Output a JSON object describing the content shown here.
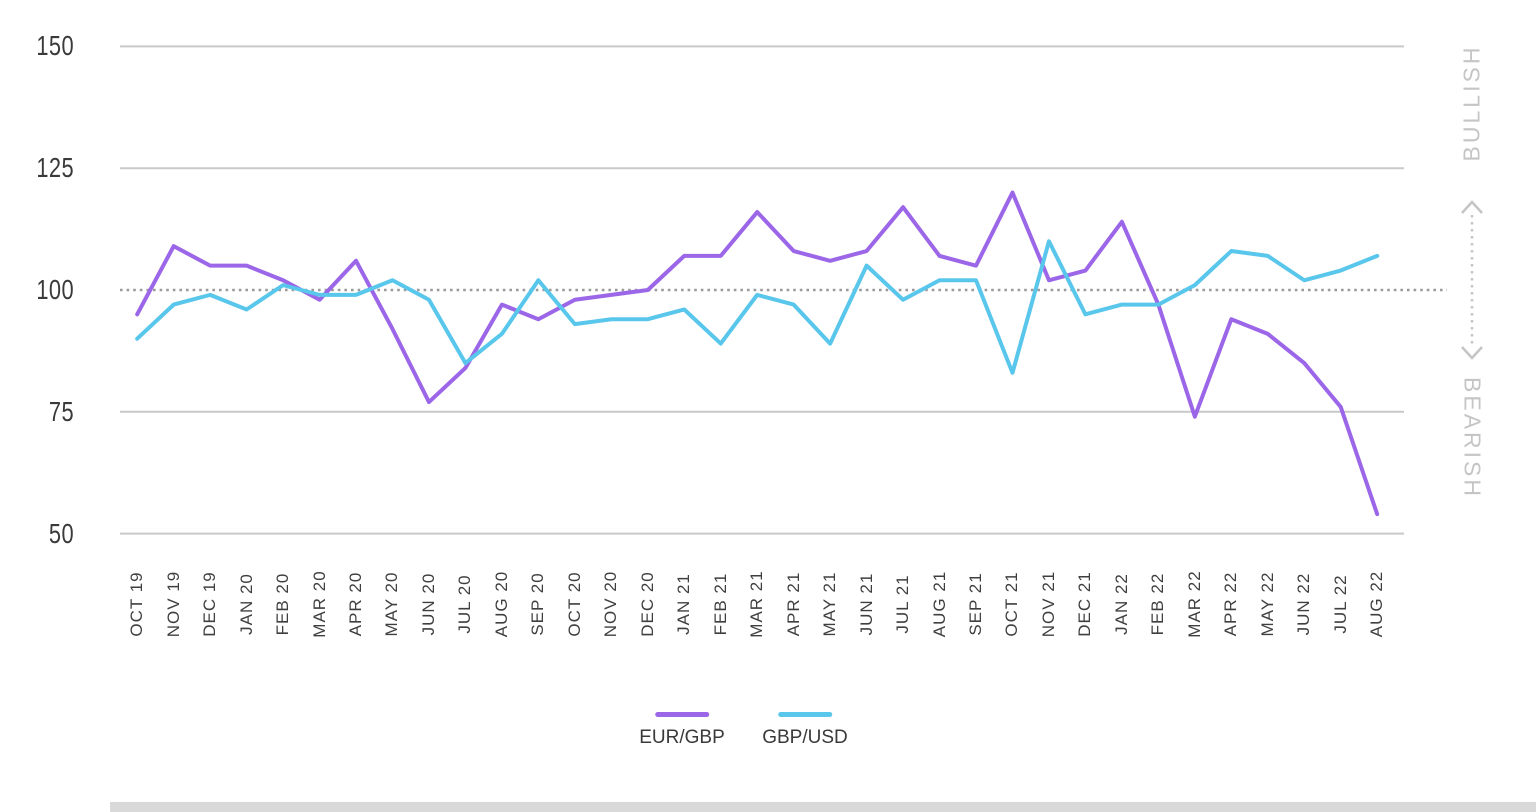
{
  "chart_data": {
    "type": "line",
    "title": "",
    "categories": [
      "OCT 19",
      "NOV 19",
      "DEC 19",
      "JAN 20",
      "FEB 20",
      "MAR 20",
      "APR 20",
      "MAY 20",
      "JUN 20",
      "JUL 20",
      "AUG 20",
      "SEP 20",
      "OCT 20",
      "NOV 20",
      "DEC 20",
      "JAN 21",
      "FEB 21",
      "MAR 21",
      "APR 21",
      "MAY 21",
      "JUN 21",
      "JUL 21",
      "AUG 21",
      "SEP 21",
      "OCT 21",
      "NOV 21",
      "DEC 21",
      "JAN 22",
      "FEB 22",
      "MAR 22",
      "APR 22",
      "MAY 22",
      "JUN 22",
      "JUL 22",
      "AUG 22"
    ],
    "series": [
      {
        "name": "EUR/GBP",
        "color": "#9b66e8",
        "values": [
          95,
          109,
          105,
          105,
          102,
          98,
          106,
          92,
          77,
          84,
          97,
          94,
          98,
          99,
          100,
          107,
          107,
          116,
          108,
          106,
          108,
          117,
          107,
          105,
          120,
          102,
          104,
          114,
          97,
          74,
          94,
          91,
          85,
          76,
          54
        ]
      },
      {
        "name": "GBP/USD",
        "color": "#59c6ec",
        "values": [
          90,
          97,
          99,
          96,
          101,
          99,
          99,
          102,
          98,
          85,
          91,
          102,
          93,
          94,
          94,
          96,
          89,
          99,
          97,
          89,
          105,
          98,
          102,
          102,
          83,
          110,
          95,
          97,
          97,
          101,
          108,
          107,
          102,
          104,
          107
        ]
      }
    ],
    "xlabel": "",
    "ylabel": "",
    "ylim": [
      50,
      150
    ],
    "yticks": [
      150,
      125,
      100,
      75,
      50
    ],
    "baseline": 100,
    "grid": "horizontal-solid-with-dotted-baseline",
    "legend_position": "bottom"
  },
  "side": {
    "bullish": "BULLISH",
    "bearish": "BEARISH"
  },
  "colors": {
    "gridline": "#c9c9c9",
    "baseline_dotted": "#9a9a9a",
    "axis_text": "#3a3a3a",
    "side_text": "#c5c5c5",
    "bottom_strip": "#d9d9d9"
  }
}
